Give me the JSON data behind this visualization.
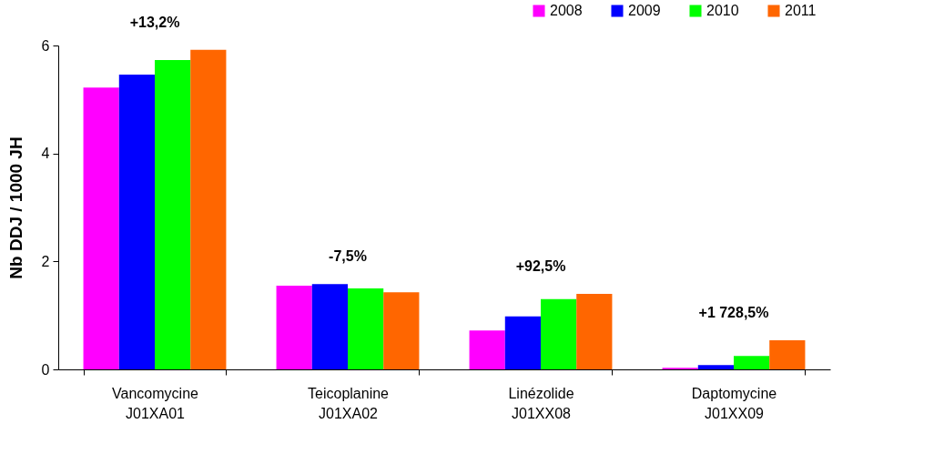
{
  "chart_data": {
    "type": "bar",
    "ylabel": "Nb DDJ / 1000 JH",
    "categories": [
      "Vancomycine\nJ01XA01",
      "Teicoplanine\nJ01XA02",
      "Linézolide\nJ01XX08",
      "Daptomycine\nJ01XX09"
    ],
    "series": [
      {
        "name": "2008",
        "color": "#ff00ff",
        "values": [
          5.22,
          1.55,
          0.72,
          0.03
        ]
      },
      {
        "name": "2009",
        "color": "#0000ff",
        "values": [
          5.46,
          1.58,
          0.98,
          0.08
        ]
      },
      {
        "name": "2010",
        "color": "#00ff00",
        "values": [
          5.73,
          1.5,
          1.3,
          0.25
        ]
      },
      {
        "name": "2011",
        "color": "#ff6600",
        "values": [
          5.92,
          1.43,
          1.4,
          0.54
        ]
      }
    ],
    "ylim": [
      0,
      6
    ],
    "yticks": [
      0,
      2,
      4,
      6
    ],
    "grid": false,
    "legend": "top right",
    "annotations": [
      "+13,2%",
      "-7,5%",
      "+92,5%",
      "+1 728,5%"
    ]
  }
}
